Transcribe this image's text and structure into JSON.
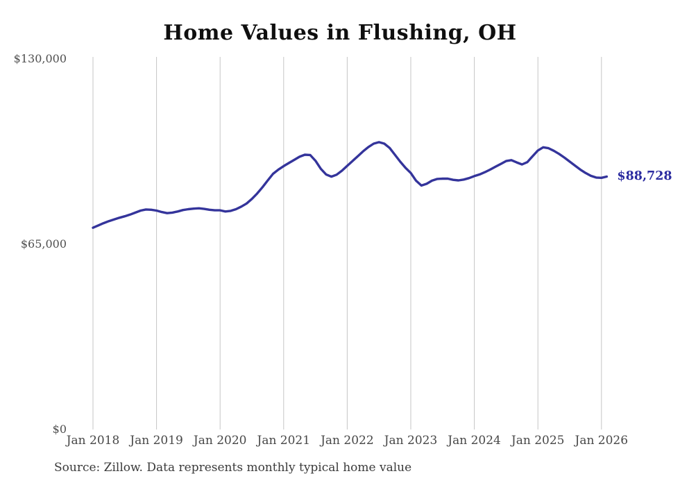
{
  "page": {
    "title": "Home Values in Flushing, OH",
    "source_note": "Source: Zillow. Data represents monthly typical home value"
  },
  "chart_data": {
    "type": "line",
    "title": "Home Values in Flushing, OH",
    "source_note": "Source: Zillow. Data represents monthly typical home value",
    "end_label": "$88,728",
    "last_value": 88728,
    "ylim": [
      0,
      130000
    ],
    "grid": "vertical-only",
    "legend_position": "none",
    "line_color": "#34349b",
    "end_label_color": "#2b2ba0",
    "grid_color": "#c5c5c5",
    "y_ticks": [
      {
        "label": "$0",
        "value": 0
      },
      {
        "label": "$65,000",
        "value": 65000
      },
      {
        "label": "$130,000",
        "value": 130000
      }
    ],
    "x_ticks": [
      "Jan 2018",
      "Jan 2019",
      "Jan 2020",
      "Jan 2021",
      "Jan 2022",
      "Jan 2023",
      "Jan 2024",
      "Jan 2025",
      "Jan 2026"
    ],
    "series": [
      {
        "name": "Monthly typical home value",
        "start": "Jan 2018",
        "frequency": "monthly",
        "values": [
          70800,
          71600,
          72400,
          73100,
          73700,
          74300,
          74800,
          75400,
          76100,
          76800,
          77200,
          77100,
          76800,
          76300,
          75900,
          76100,
          76500,
          77000,
          77300,
          77500,
          77600,
          77400,
          77100,
          76900,
          76900,
          76500,
          76700,
          77300,
          78200,
          79300,
          80900,
          82800,
          85000,
          87400,
          89700,
          91200,
          92400,
          93500,
          94600,
          95700,
          96400,
          96300,
          94300,
          91500,
          89500,
          88700,
          89400,
          90800,
          92500,
          94200,
          95900,
          97600,
          99100,
          100300,
          100800,
          100300,
          98800,
          96400,
          94000,
          91800,
          90000,
          87300,
          85600,
          86200,
          87300,
          87900,
          88000,
          88000,
          87600,
          87400,
          87700,
          88200,
          88900,
          89500,
          90300,
          91200,
          92200,
          93200,
          94200,
          94500,
          93700,
          93000,
          93800,
          95900,
          97900,
          99000,
          98700,
          97800,
          96700,
          95400,
          94000,
          92600,
          91200,
          90000,
          89000,
          88400,
          88300,
          88728
        ]
      }
    ]
  }
}
